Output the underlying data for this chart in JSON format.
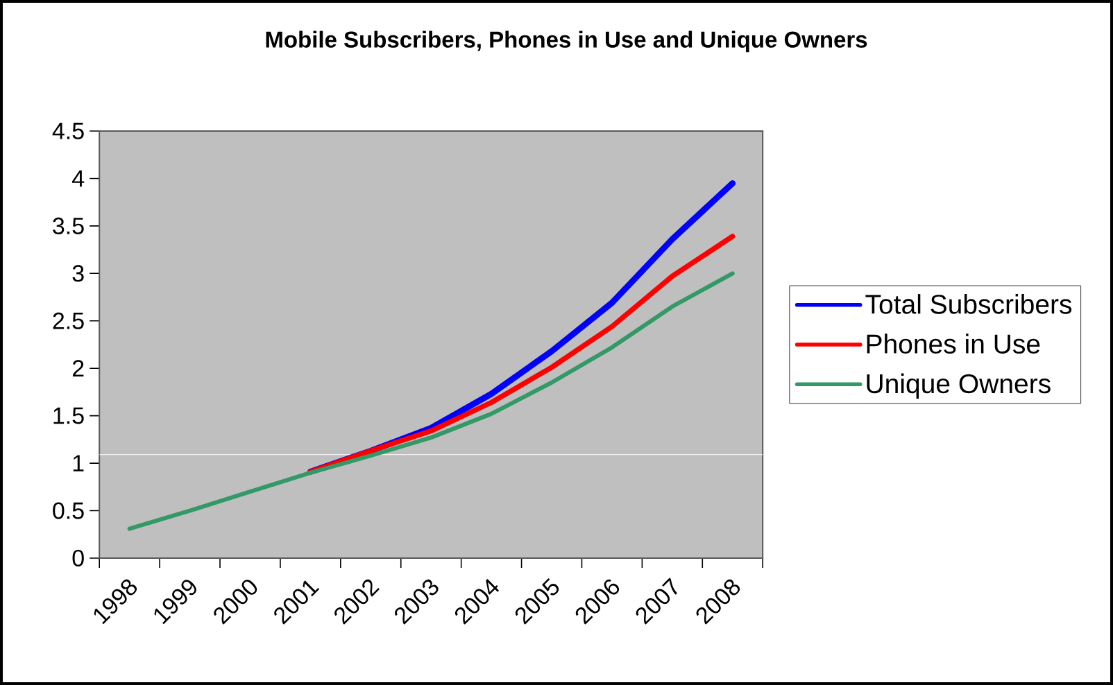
{
  "chart_data": {
    "type": "line",
    "title": "Mobile Subscribers, Phones in Use and Unique Owners",
    "categories": [
      "1998",
      "1999",
      "2000",
      "2001",
      "2002",
      "2003",
      "2004",
      "2005",
      "2006",
      "2007",
      "2008"
    ],
    "series": [
      {
        "name": "Total Subscribers",
        "color": "#0000ff",
        "values": [
          null,
          null,
          null,
          0.91,
          1.13,
          1.37,
          1.73,
          2.18,
          2.69,
          3.36,
          3.95
        ]
      },
      {
        "name": "Phones in Use",
        "color": "#ff0000",
        "values": [
          null,
          null,
          null,
          0.91,
          1.13,
          1.34,
          1.64,
          2.01,
          2.44,
          2.97,
          3.39
        ]
      },
      {
        "name": "Unique Owners",
        "color": "#339966",
        "values": [
          0.31,
          0.5,
          0.7,
          0.9,
          1.08,
          1.27,
          1.52,
          1.85,
          2.22,
          2.65,
          3.0
        ]
      }
    ],
    "ylim": [
      0,
      4.5
    ],
    "yticks": [
      0,
      0.5,
      1,
      1.5,
      2,
      2.5,
      3,
      3.5,
      4,
      4.5
    ],
    "ref_lines": [
      {
        "axis": "y",
        "value": 1.09,
        "color": "#ffffff"
      }
    ],
    "legend": "right",
    "marker": "none",
    "line_style": "solid"
  }
}
